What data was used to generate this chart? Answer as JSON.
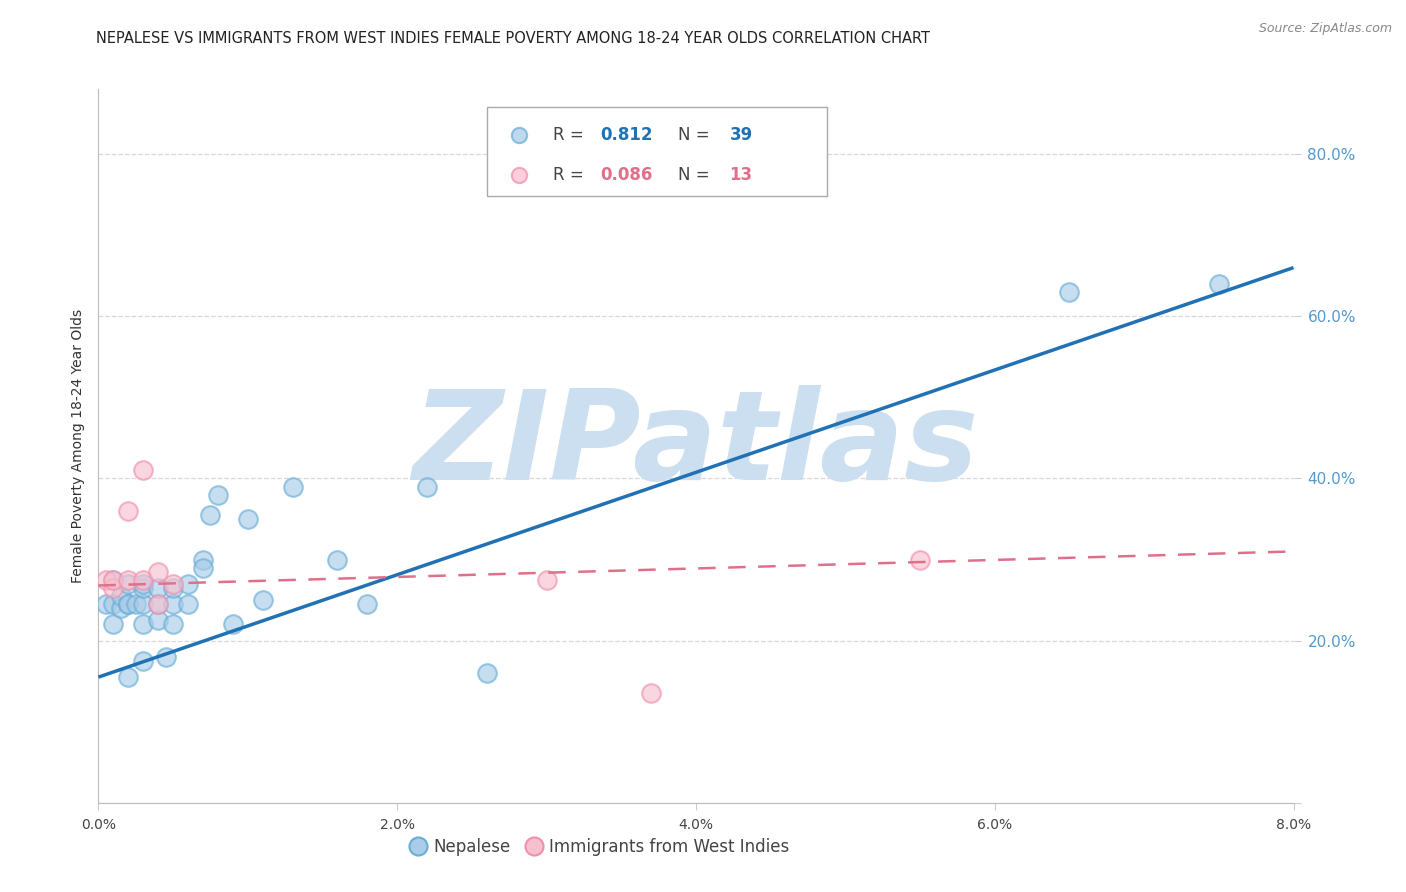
{
  "title": "NEPALESE VS IMMIGRANTS FROM WEST INDIES FEMALE POVERTY AMONG 18-24 YEAR OLDS CORRELATION CHART",
  "source": "Source: ZipAtlas.com",
  "ylabel": "Female Poverty Among 18-24 Year Olds",
  "xlim": [
    0.0,
    0.08
  ],
  "ylim": [
    0.0,
    0.88
  ],
  "xticks": [
    0.0,
    0.02,
    0.04,
    0.06,
    0.08
  ],
  "xtick_labels": [
    "0.0%",
    "2.0%",
    "4.0%",
    "6.0%",
    "8.0%"
  ],
  "yticks_right": [
    0.0,
    0.2,
    0.4,
    0.6,
    0.8
  ],
  "ytick_labels_right": [
    "",
    "20.0%",
    "40.0%",
    "60.0%",
    "80.0%"
  ],
  "blue_fill": "#aacce8",
  "blue_edge": "#6aaed6",
  "blue_line": "#2171b5",
  "pink_fill": "#f7c0d0",
  "pink_edge": "#f090aa",
  "pink_line": "#e0708a",
  "right_tick_color": "#5599cc",
  "blue_R": "0.812",
  "blue_N": "39",
  "pink_R": "0.086",
  "pink_N": "13",
  "label_blue": "Nepalese",
  "label_pink": "Immigrants from West Indies",
  "watermark": "ZIPatlas",
  "watermark_color": "#ccdff0",
  "blue_x": [
    0.0005,
    0.001,
    0.001,
    0.001,
    0.0015,
    0.0015,
    0.002,
    0.002,
    0.002,
    0.002,
    0.0025,
    0.003,
    0.003,
    0.003,
    0.003,
    0.003,
    0.004,
    0.004,
    0.004,
    0.0045,
    0.005,
    0.005,
    0.005,
    0.006,
    0.006,
    0.007,
    0.007,
    0.0075,
    0.008,
    0.009,
    0.01,
    0.011,
    0.013,
    0.016,
    0.018,
    0.022,
    0.026,
    0.065,
    0.075
  ],
  "blue_y": [
    0.245,
    0.22,
    0.245,
    0.275,
    0.24,
    0.255,
    0.155,
    0.245,
    0.27,
    0.245,
    0.245,
    0.175,
    0.22,
    0.245,
    0.265,
    0.27,
    0.225,
    0.245,
    0.265,
    0.18,
    0.245,
    0.22,
    0.265,
    0.27,
    0.245,
    0.3,
    0.29,
    0.355,
    0.38,
    0.22,
    0.35,
    0.25,
    0.39,
    0.3,
    0.245,
    0.39,
    0.16,
    0.63,
    0.64
  ],
  "pink_x": [
    0.0005,
    0.001,
    0.001,
    0.002,
    0.002,
    0.003,
    0.003,
    0.004,
    0.004,
    0.005,
    0.03,
    0.037,
    0.055
  ],
  "pink_y": [
    0.275,
    0.265,
    0.275,
    0.36,
    0.275,
    0.41,
    0.275,
    0.245,
    0.285,
    0.27,
    0.275,
    0.135,
    0.3
  ],
  "blue_trend_x": [
    0.0,
    0.08
  ],
  "blue_trend_y": [
    0.155,
    0.66
  ],
  "pink_trend_x": [
    0.0,
    0.08
  ],
  "pink_trend_y": [
    0.268,
    0.31
  ],
  "grid_color": "#d8d8d8",
  "title_fontsize": 10.5,
  "axis_label_fontsize": 10,
  "tick_fontsize": 10,
  "legend_fontsize": 12,
  "source_fontsize": 9
}
